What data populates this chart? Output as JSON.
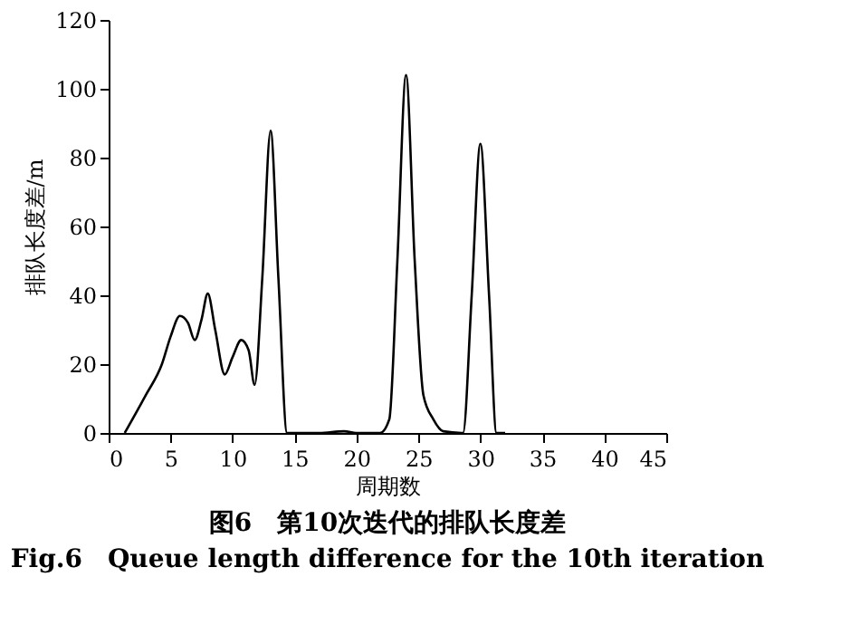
{
  "chart_data": {
    "type": "line",
    "title": "图6　第10次迭代的排队长度差",
    "subtitle": "Fig.6　Queue length difference for the 10th iteration",
    "xlabel": "周期数",
    "ylabel": "排队长度差/m",
    "x": [
      1.3,
      3,
      4.3,
      5,
      5.75,
      6.4,
      6.95,
      7.5,
      8.0,
      8.6,
      9.37,
      10,
      10.7,
      11.3,
      11.78,
      12.4,
      13.07,
      13.7,
      14.4,
      17,
      19,
      20,
      21.9,
      22.65,
      23.3,
      24.0,
      24.7,
      25.4,
      26.2,
      27.0,
      28.6,
      29.3,
      30.0,
      30.7,
      31.3,
      32
    ],
    "series": [
      {
        "color": "#000000",
        "values": [
          0,
          11,
          20,
          28,
          34,
          32,
          27,
          33,
          40.5,
          30,
          17,
          22,
          27,
          24,
          14,
          45,
          87.8,
          45,
          0,
          0,
          0.5,
          0,
          0,
          4,
          50,
          104,
          50,
          11,
          4,
          0.5,
          0,
          40,
          84,
          40,
          0,
          0
        ]
      }
    ],
    "xlim": [
      0,
      45
    ],
    "xticks": [
      0,
      5,
      10,
      15,
      20,
      25,
      30,
      35,
      40,
      45
    ],
    "ylim": [
      0,
      120
    ],
    "yticks": [
      0,
      20,
      40,
      60,
      80,
      100,
      120
    ],
    "grid": false,
    "legend": false,
    "marker": "none",
    "line_style": "solid"
  }
}
